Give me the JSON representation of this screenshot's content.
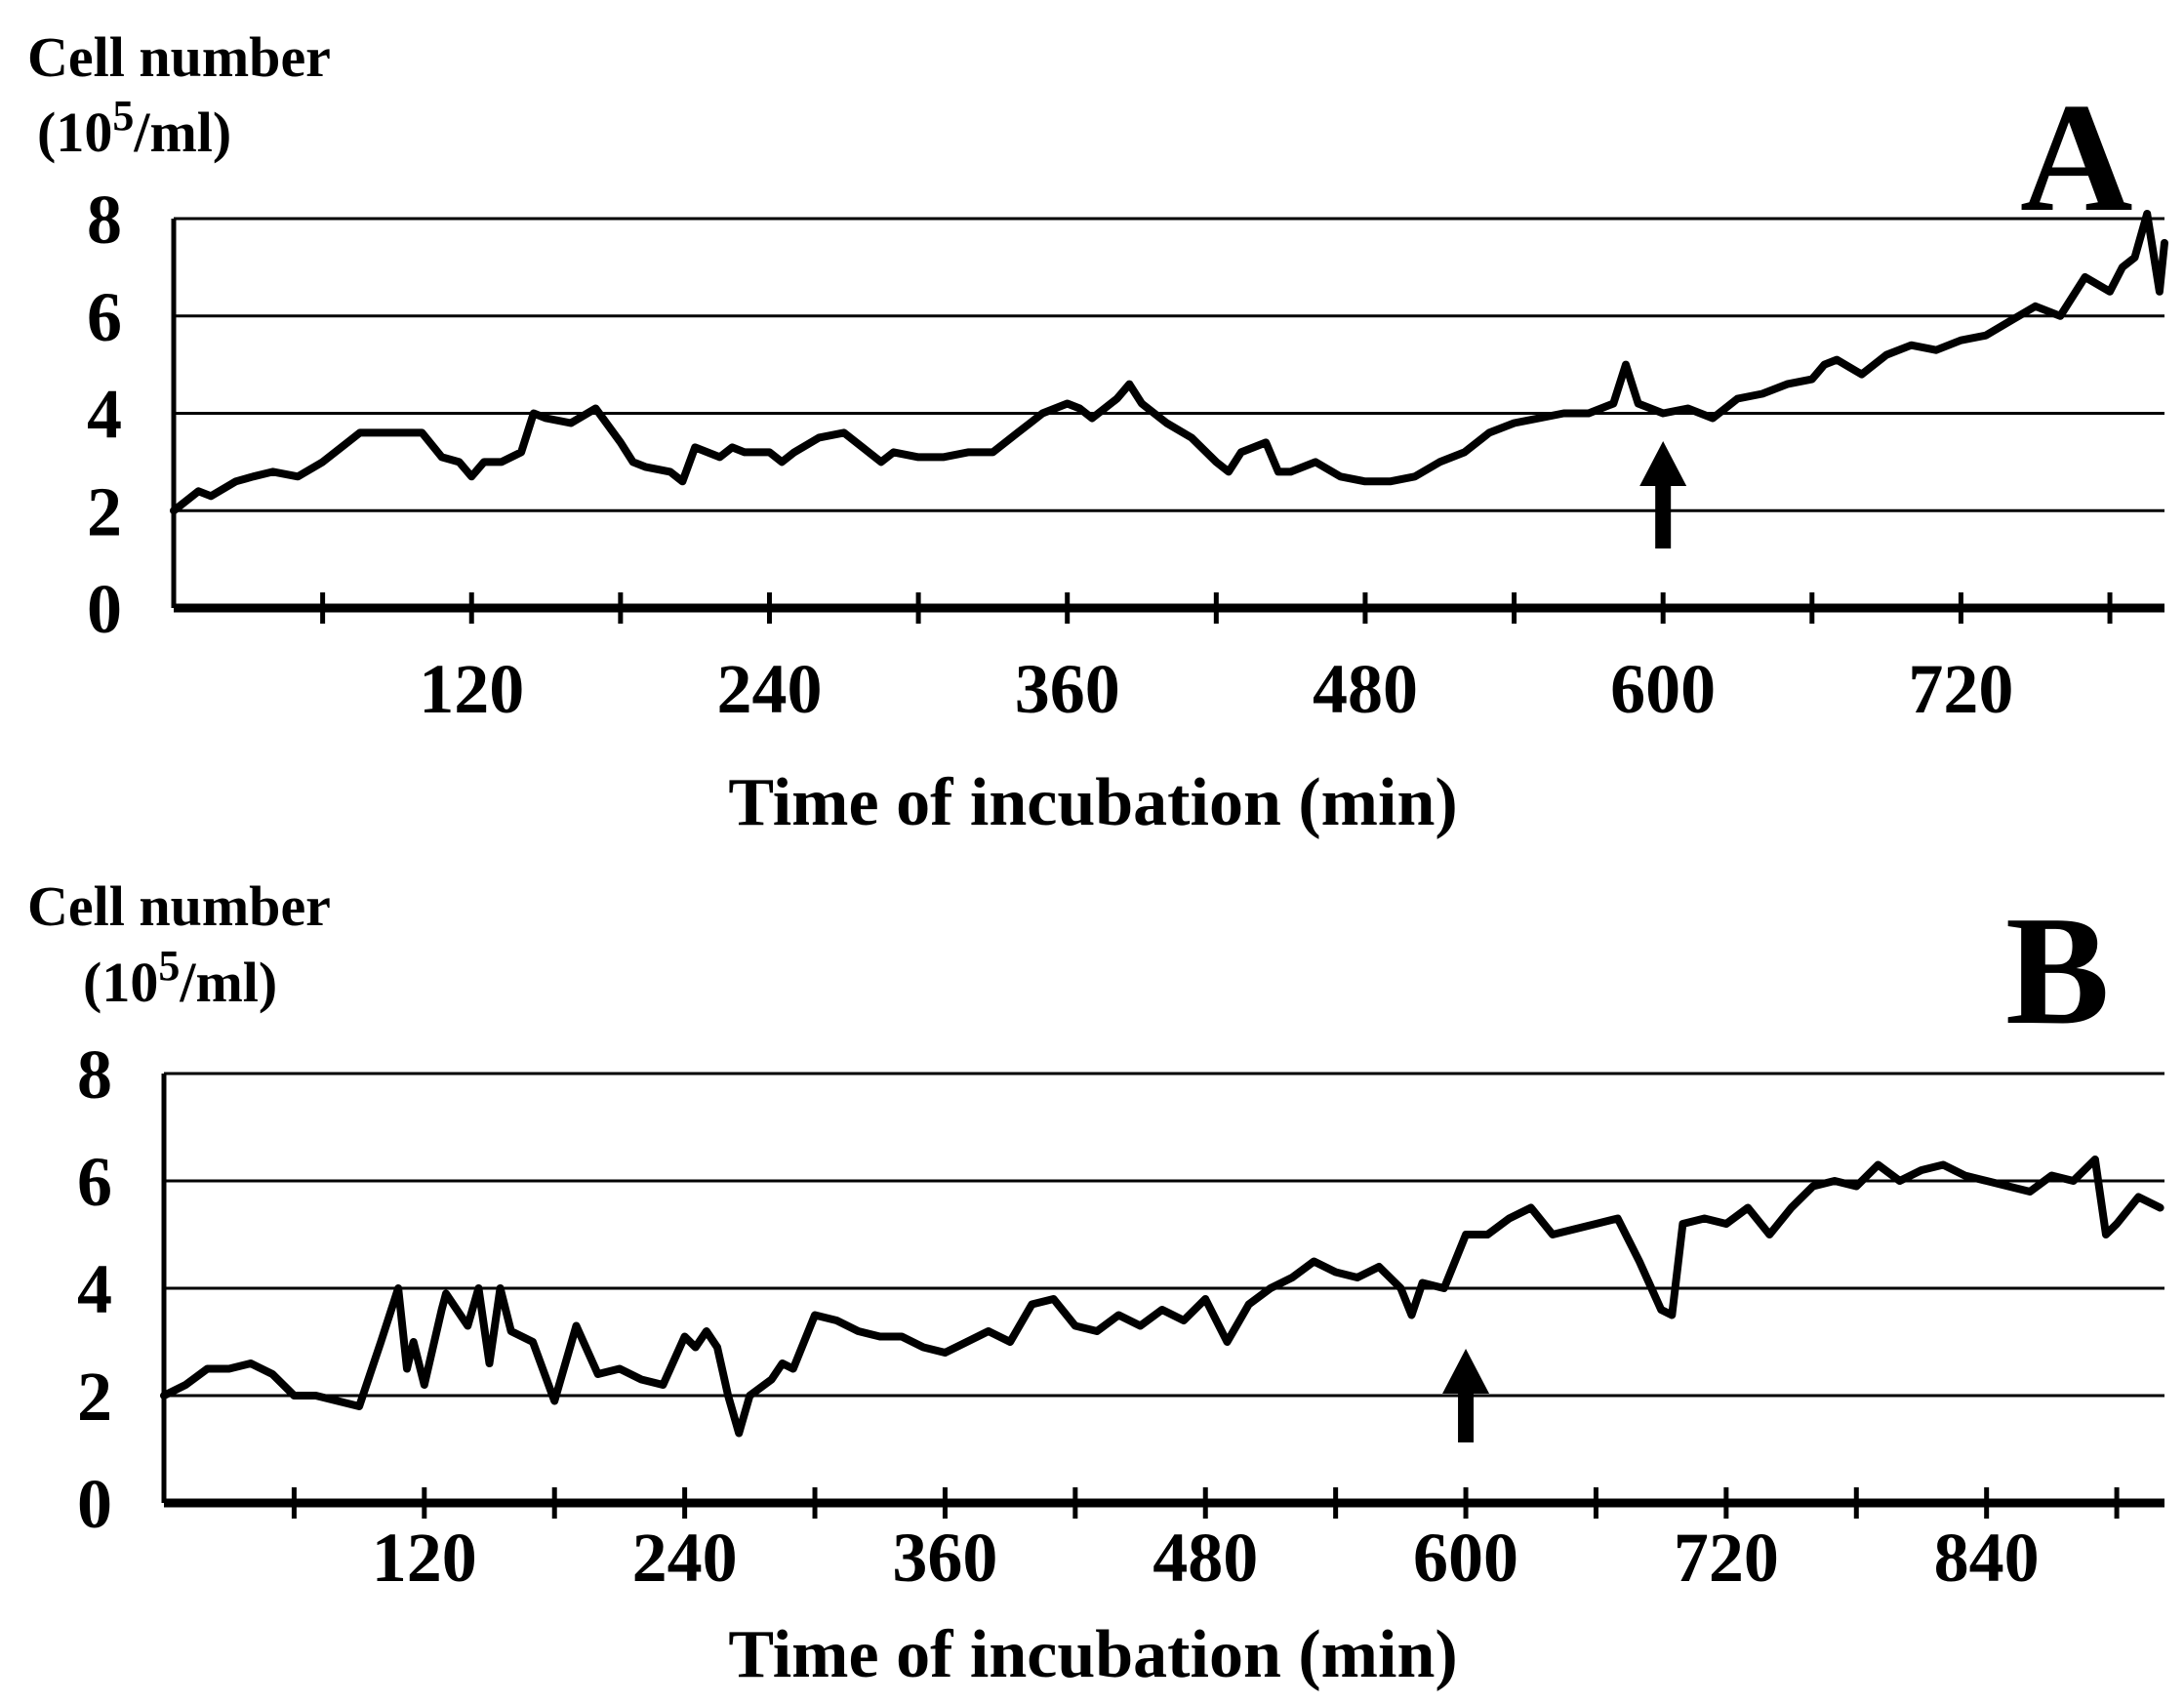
{
  "colors": {
    "line": "#000000",
    "background": "#ffffff"
  },
  "chart_data": [
    {
      "type": "line",
      "panel_label": "A",
      "ylabel_line1": "Cell number",
      "ylabel_line2_prefix": "(10",
      "ylabel_line2_exp": "5",
      "ylabel_line2_suffix": "/ml)",
      "xlabel": "Time of incubation (min)",
      "xlim": [
        0,
        802
      ],
      "ylim": [
        0,
        8
      ],
      "yticks": [
        0,
        2,
        4,
        6,
        8
      ],
      "xtick_labels": [
        120,
        240,
        360,
        480,
        600,
        720
      ],
      "minor_xticks": [
        60,
        180,
        300,
        420,
        540,
        660,
        780
      ],
      "grid": "horizontal",
      "arrow_at_x": 600,
      "series": [
        {
          "x": [
            0,
            10,
            15,
            25,
            32,
            40,
            50,
            60,
            70,
            75,
            80,
            90,
            100,
            108,
            115,
            120,
            125,
            132,
            140,
            145,
            150,
            160,
            170,
            180,
            185,
            190,
            200,
            205,
            210,
            220,
            225,
            230,
            240,
            245,
            250,
            260,
            270,
            280,
            285,
            290,
            300,
            310,
            320,
            330,
            335,
            340,
            345,
            350,
            360,
            365,
            370,
            380,
            385,
            390,
            400,
            410,
            420,
            425,
            430,
            440,
            445,
            450,
            460,
            470,
            480,
            490,
            500,
            510,
            520,
            530,
            540,
            550,
            560,
            570,
            580,
            585,
            590,
            595,
            600,
            610,
            620,
            630,
            640,
            650,
            660,
            665,
            670,
            680,
            690,
            700,
            710,
            720,
            730,
            740,
            750,
            760,
            770,
            780,
            785,
            790,
            795,
            800,
            802
          ],
          "y": [
            2.0,
            2.4,
            2.3,
            2.6,
            2.7,
            2.8,
            2.7,
            3.0,
            3.4,
            3.6,
            3.6,
            3.6,
            3.6,
            3.1,
            3.0,
            2.7,
            3.0,
            3.0,
            3.2,
            4.0,
            3.9,
            3.8,
            4.1,
            3.4,
            3.0,
            2.9,
            2.8,
            2.6,
            3.3,
            3.1,
            3.3,
            3.2,
            3.2,
            3.0,
            3.2,
            3.5,
            3.6,
            3.2,
            3.0,
            3.2,
            3.1,
            3.1,
            3.2,
            3.2,
            3.4,
            3.6,
            3.8,
            4.0,
            4.2,
            4.1,
            3.9,
            4.3,
            4.6,
            4.2,
            3.8,
            3.5,
            3.0,
            2.8,
            3.2,
            3.4,
            2.8,
            2.8,
            3.0,
            2.7,
            2.6,
            2.6,
            2.7,
            3.0,
            3.2,
            3.6,
            3.8,
            3.9,
            4.0,
            4.0,
            4.2,
            5.0,
            4.2,
            4.1,
            4.0,
            4.1,
            3.9,
            4.3,
            4.4,
            4.6,
            4.7,
            5.0,
            5.1,
            4.8,
            5.2,
            5.4,
            5.3,
            5.5,
            5.6,
            5.9,
            6.2,
            6.0,
            6.8,
            6.5,
            7.0,
            7.2,
            8.1,
            6.5,
            7.5
          ]
        }
      ]
    },
    {
      "type": "line",
      "panel_label": "B",
      "ylabel_line1": "Cell number",
      "ylabel_line2_prefix": "(10",
      "ylabel_line2_exp": "5",
      "ylabel_line2_suffix": "/ml)",
      "xlabel": "Time of incubation (min)",
      "xlim": [
        0,
        922
      ],
      "ylim": [
        0,
        8
      ],
      "yticks": [
        0,
        2,
        4,
        6,
        8
      ],
      "xtick_labels": [
        120,
        240,
        360,
        480,
        600,
        720,
        840
      ],
      "minor_xticks": [
        60,
        180,
        300,
        420,
        540,
        660,
        780,
        900
      ],
      "grid": "horizontal",
      "arrow_at_x": 600,
      "series": [
        {
          "x": [
            0,
            10,
            20,
            30,
            40,
            50,
            60,
            70,
            80,
            90,
            95,
            100,
            108,
            112,
            115,
            120,
            128,
            130,
            140,
            145,
            150,
            155,
            160,
            170,
            180,
            190,
            200,
            210,
            220,
            230,
            240,
            245,
            250,
            255,
            260,
            265,
            270,
            280,
            285,
            290,
            300,
            310,
            320,
            330,
            340,
            350,
            360,
            370,
            380,
            390,
            400,
            410,
            420,
            430,
            440,
            450,
            460,
            470,
            480,
            490,
            500,
            510,
            520,
            530,
            540,
            550,
            560,
            570,
            575,
            580,
            590,
            600,
            610,
            620,
            630,
            640,
            650,
            660,
            670,
            680,
            690,
            695,
            700,
            710,
            720,
            730,
            740,
            750,
            760,
            770,
            780,
            790,
            800,
            810,
            820,
            830,
            840,
            850,
            860,
            870,
            880,
            890,
            895,
            900,
            910,
            920
          ],
          "y": [
            2.0,
            2.2,
            2.5,
            2.5,
            2.6,
            2.4,
            2.0,
            2.0,
            1.9,
            1.8,
            2.4,
            3.0,
            4.0,
            2.5,
            3.0,
            2.2,
            3.6,
            3.9,
            3.3,
            4.0,
            2.6,
            4.0,
            3.2,
            3.0,
            1.9,
            3.3,
            2.4,
            2.5,
            2.3,
            2.2,
            3.1,
            2.9,
            3.2,
            2.9,
            2.0,
            1.3,
            2.0,
            2.3,
            2.6,
            2.5,
            3.5,
            3.4,
            3.2,
            3.1,
            3.1,
            2.9,
            2.8,
            3.0,
            3.2,
            3.0,
            3.7,
            3.8,
            3.3,
            3.2,
            3.5,
            3.3,
            3.6,
            3.4,
            3.8,
            3.0,
            3.7,
            4.0,
            4.2,
            4.5,
            4.3,
            4.2,
            4.4,
            4.0,
            3.5,
            4.1,
            4.0,
            5.0,
            5.0,
            5.3,
            5.5,
            5.0,
            5.1,
            5.2,
            5.3,
            4.5,
            3.6,
            3.5,
            5.2,
            5.3,
            5.2,
            5.5,
            5.0,
            5.5,
            5.9,
            6.0,
            5.9,
            6.3,
            6.0,
            6.2,
            6.3,
            6.1,
            6.0,
            5.9,
            5.8,
            6.1,
            6.0,
            6.4,
            5.0,
            5.2,
            5.7,
            5.5
          ]
        }
      ]
    }
  ]
}
